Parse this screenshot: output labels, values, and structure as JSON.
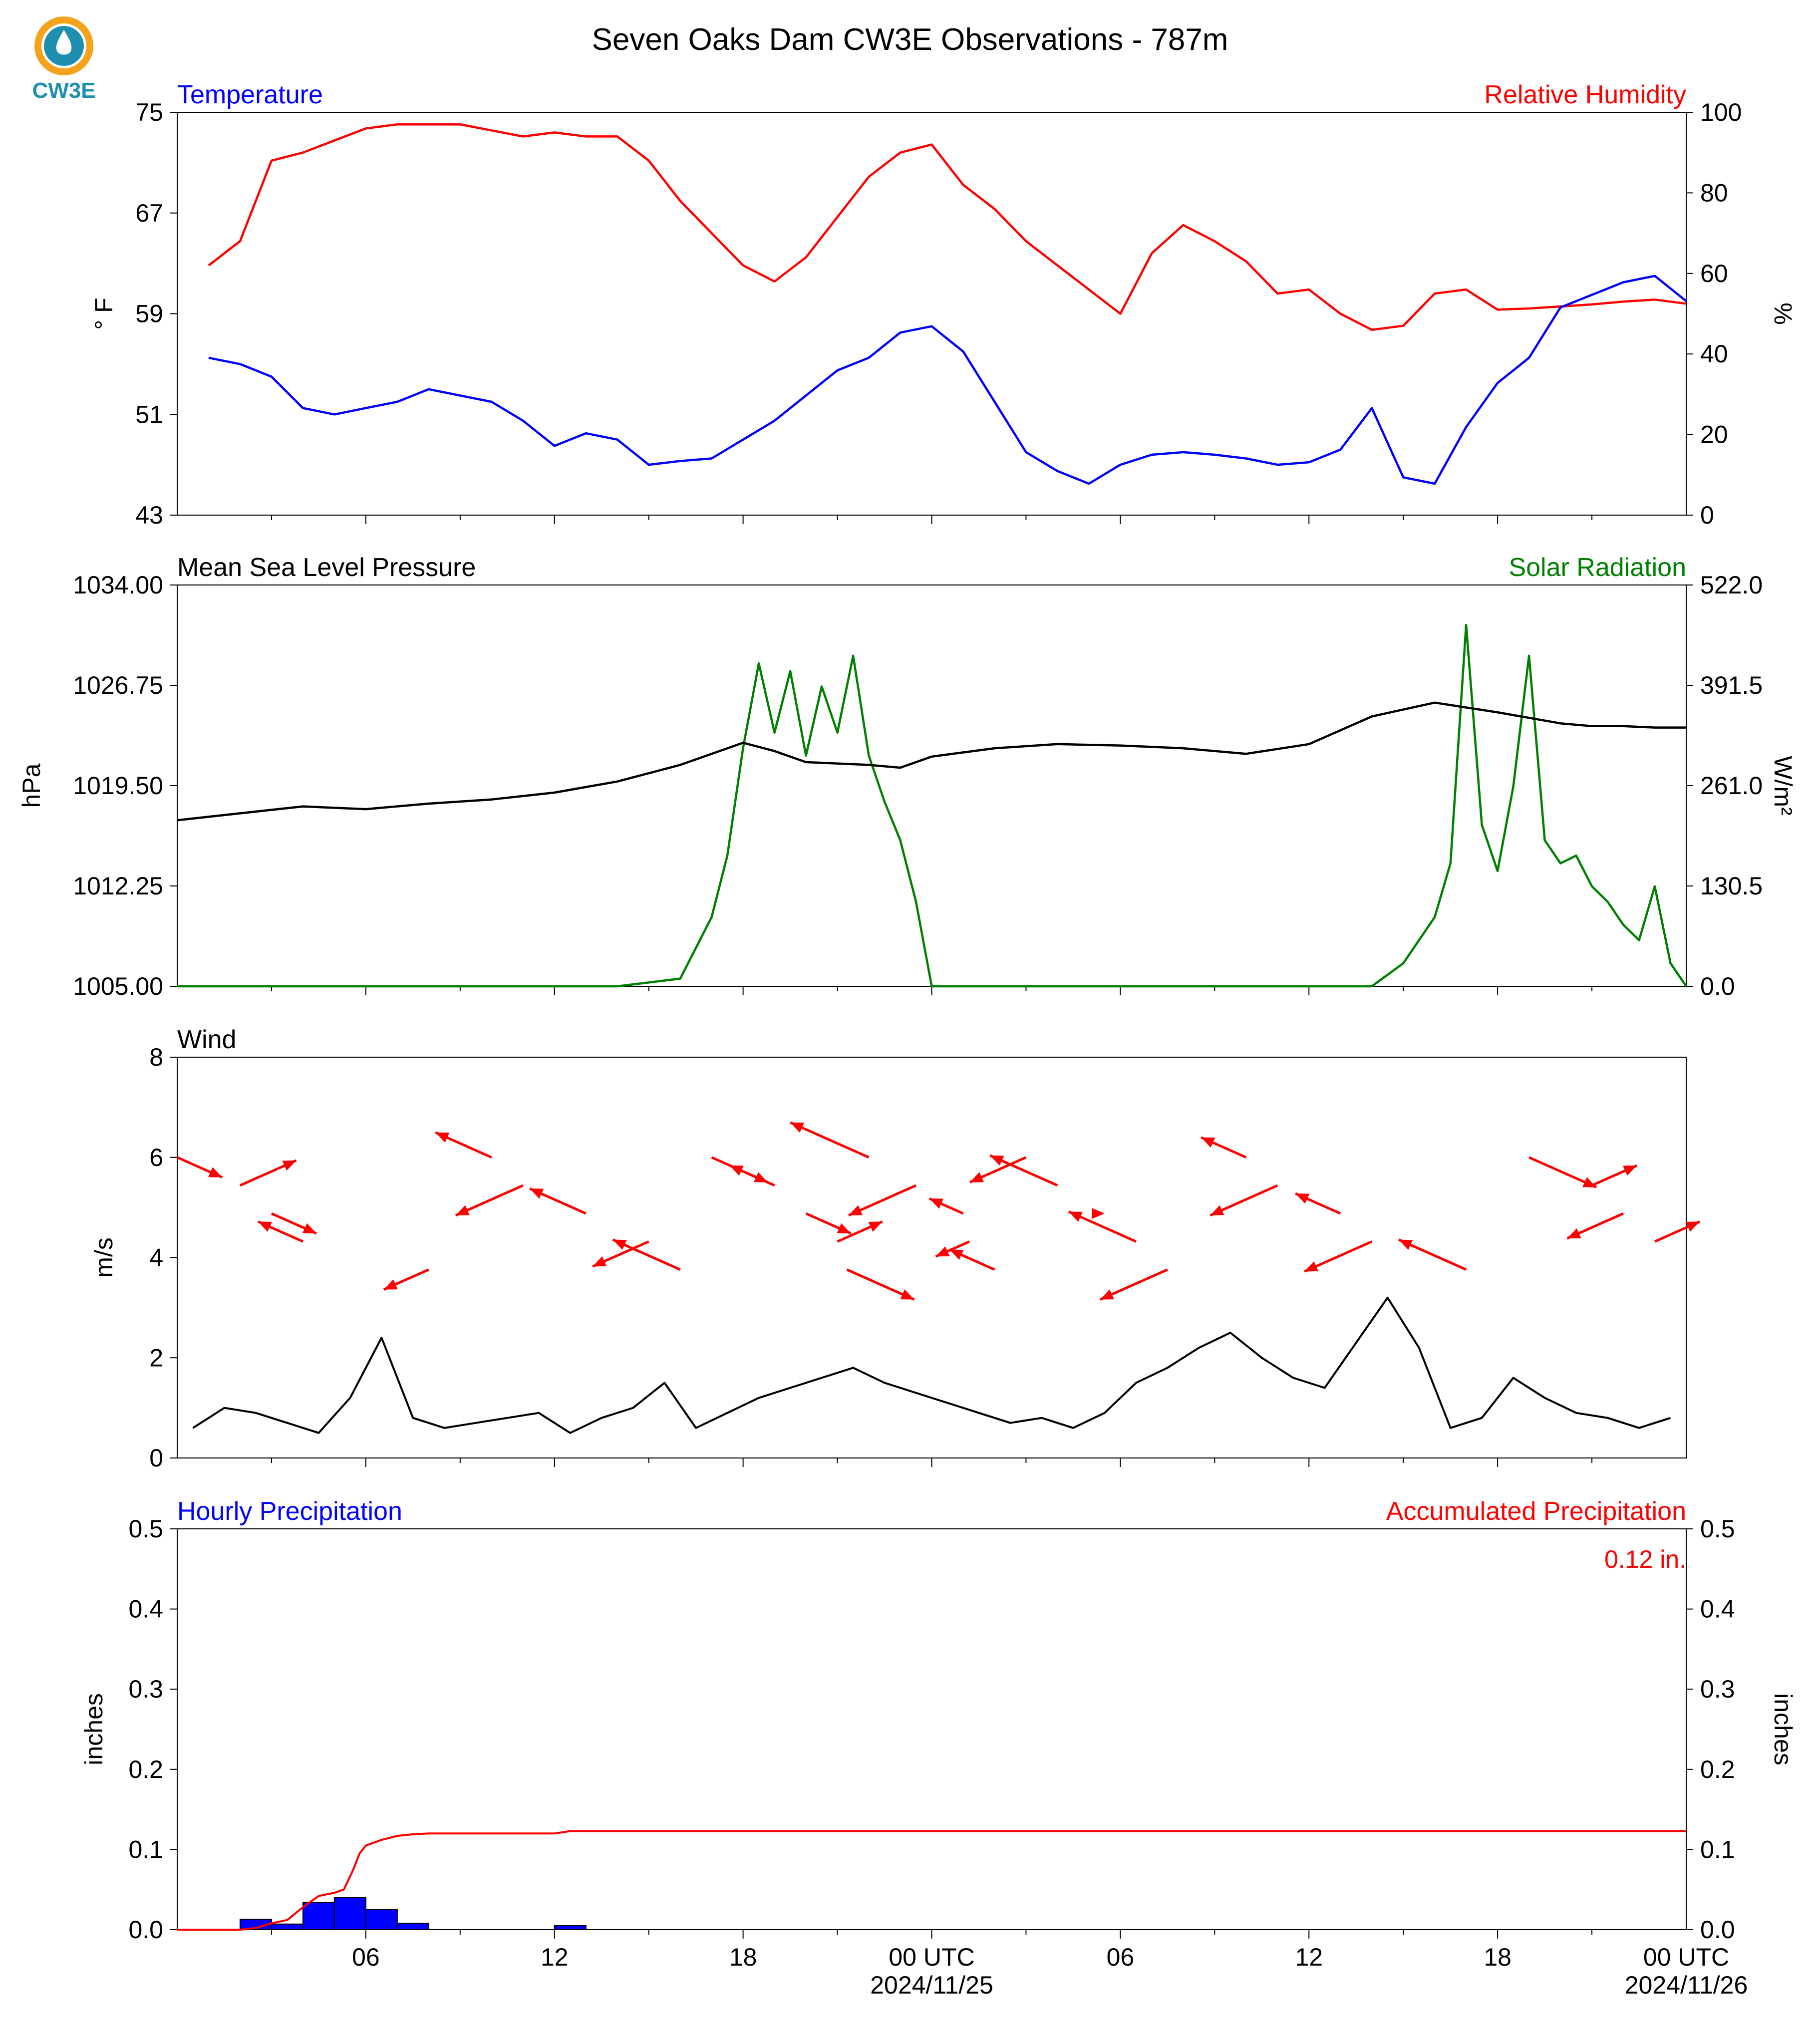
{
  "figure": {
    "title": "Seven Oaks Dam CW3E Observations - 787m",
    "logo_text": "CW3E",
    "time_ticks": [
      "06",
      "12",
      "18",
      "00 UTC",
      "06",
      "12",
      "18",
      "00 UTC"
    ],
    "date_labels": [
      "2024/11/25",
      "2024/11/26"
    ]
  },
  "colors": {
    "blue": "#0000ff",
    "red": "#ff0000",
    "green": "#008000",
    "black": "#000000",
    "logo_orange": "#f5a31a",
    "logo_teal": "#1f8fb0"
  },
  "chart_data": [
    {
      "type": "line",
      "panel": "temperature-humidity",
      "left_title": "Temperature",
      "right_title": "Relative Humidity",
      "ylabel": "° F",
      "ylabel2": "%",
      "ylim": [
        43,
        75
      ],
      "ylim2": [
        0,
        100
      ],
      "yticks": [
        "75",
        "67",
        "59",
        "51",
        "43"
      ],
      "yticks2": [
        "100",
        "80",
        "60",
        "40",
        "20",
        "0"
      ],
      "x_hours": [
        1,
        2,
        3,
        4,
        5,
        6,
        7,
        8,
        9,
        10,
        11,
        12,
        13,
        14,
        15,
        16,
        17,
        18,
        19,
        20,
        21,
        22,
        23,
        24,
        25,
        26,
        27,
        28,
        29,
        30,
        31,
        32,
        33,
        34,
        35,
        36,
        37,
        38,
        39,
        40,
        41,
        42,
        43,
        44,
        45,
        46,
        47,
        48
      ],
      "series": [
        {
          "name": "Temperature",
          "axis": "left",
          "color": "blue",
          "values": [
            55.5,
            55,
            54,
            51.5,
            51,
            51.5,
            52,
            53,
            52.5,
            52,
            50.5,
            48.5,
            49.5,
            49,
            47,
            47.3,
            47.5,
            49,
            50.5,
            52.5,
            54.5,
            55.5,
            57.5,
            58,
            56,
            52,
            48,
            46.5,
            45.5,
            47,
            47.8,
            48,
            47.8,
            47.5,
            47,
            47.2,
            48.2,
            51.5,
            46,
            45.5,
            50,
            53.5,
            55.5,
            59.5,
            60.5,
            61.5,
            62,
            60
          ]
        },
        {
          "name": "Relative Humidity",
          "axis": "right",
          "color": "red",
          "values": [
            62,
            68,
            88,
            90,
            93,
            96,
            97,
            97,
            97,
            95.5,
            94,
            95,
            94,
            94,
            88,
            78,
            70,
            62,
            58,
            64,
            74,
            84,
            90,
            92,
            82,
            76,
            68,
            62,
            56,
            50,
            65,
            72,
            68,
            63,
            55,
            56,
            50,
            46,
            47,
            55,
            56,
            51,
            51.3,
            51.8,
            52.3,
            53,
            53.5,
            52.5
          ]
        }
      ]
    },
    {
      "type": "line",
      "panel": "pressure-solar",
      "left_title": "Mean Sea Level Pressure",
      "right_title": "Solar Radiation",
      "ylabel": "hPa",
      "ylabel2": "W/m²",
      "ylim": [
        1005,
        1034
      ],
      "ylim2": [
        0,
        522
      ],
      "yticks": [
        "1034.00",
        "1026.75",
        "1019.50",
        "1012.25",
        "1005.00"
      ],
      "yticks2": [
        "522.0",
        "391.5",
        "261.0",
        "130.5",
        "0.0"
      ],
      "series": [
        {
          "name": "Mean Sea Level Pressure",
          "axis": "left",
          "color": "black",
          "x": [
            0,
            2,
            4,
            6,
            8,
            10,
            12,
            14,
            16,
            18,
            19,
            20,
            22,
            23,
            24,
            26,
            28,
            30,
            32,
            34,
            36,
            38,
            40,
            42,
            44,
            45,
            46,
            47,
            48
          ],
          "values": [
            1017,
            1017.5,
            1018,
            1017.8,
            1018.2,
            1018.5,
            1019,
            1019.8,
            1021,
            1022.6,
            1022,
            1021.2,
            1021,
            1020.8,
            1021.6,
            1022.2,
            1022.5,
            1022.4,
            1022.2,
            1021.8,
            1022.5,
            1024.5,
            1025.5,
            1024.8,
            1024,
            1023.8,
            1023.8,
            1023.7,
            1023.7
          ]
        },
        {
          "name": "Solar Radiation",
          "axis": "right",
          "color": "green",
          "x": [
            0,
            14,
            16,
            16.5,
            17,
            17.5,
            18,
            18.5,
            19,
            19.5,
            20,
            20.5,
            21,
            21.5,
            22,
            22.5,
            23,
            23.5,
            24,
            38,
            39,
            40,
            40.5,
            41,
            41.5,
            42,
            42.5,
            43,
            43.5,
            44,
            44.5,
            45,
            45.5,
            46,
            46.5,
            47,
            47.5,
            48
          ],
          "values": [
            0,
            0,
            10,
            50,
            90,
            170,
            310,
            420,
            330,
            410,
            300,
            390,
            330,
            430,
            300,
            240,
            190,
            110,
            0,
            0,
            30,
            90,
            160,
            470,
            210,
            150,
            260,
            430,
            190,
            160,
            170,
            130,
            110,
            80,
            60,
            130,
            30,
            0
          ]
        }
      ]
    },
    {
      "type": "line",
      "panel": "wind",
      "left_title": "Wind",
      "ylabel": "m/s",
      "ylim": [
        0,
        8
      ],
      "yticks": [
        "8",
        "6",
        "4",
        "2",
        "0"
      ],
      "series": [
        {
          "name": "Wind speed",
          "axis": "left",
          "color": "black",
          "values": [
            0.6,
            1.0,
            0.9,
            0.7,
            0.5,
            1.2,
            2.4,
            0.8,
            0.6,
            0.7,
            0.8,
            0.9,
            0.5,
            0.8,
            1.0,
            1.5,
            0.6,
            0.9,
            1.2,
            1.4,
            1.6,
            1.8,
            1.5,
            1.3,
            1.1,
            0.9,
            0.7,
            0.8,
            0.6,
            0.9,
            1.5,
            1.8,
            2.2,
            2.5,
            2.0,
            1.6,
            1.4,
            2.3,
            3.2,
            2.2,
            0.6,
            0.8,
            1.6,
            1.2,
            0.9,
            0.8,
            0.6,
            0.8
          ]
        },
        {
          "name": "Wind barbs",
          "type": "vector",
          "color": "red",
          "x_hours": [
            0,
            2,
            3,
            4,
            8,
            10,
            11,
            13,
            15,
            16,
            17,
            19,
            20,
            21,
            21.3,
            22,
            23.5,
            25,
            25.2,
            26,
            27,
            28,
            29.5,
            30.5,
            31.5,
            34,
            35,
            37,
            38,
            41,
            43,
            45,
            46,
            47
          ],
          "u": [
            2,
            2.5,
            2,
            -2,
            -2,
            -2.5,
            -3,
            -2.5,
            -2.5,
            -3,
            2.5,
            -2,
            2,
            2,
            3,
            -3.5,
            -3,
            -1.5,
            -1.5,
            -2,
            -2.5,
            -3,
            0,
            -3,
            -3,
            -2,
            -3,
            -2,
            -3,
            -3,
            3,
            2,
            -2.5,
            2
          ]
        }
      ]
    },
    {
      "type": "bar",
      "panel": "precipitation",
      "left_title": "Hourly Precipitation",
      "right_title": "Accumulated Precipitation",
      "annotation": "0.12 in.",
      "ylabel": "inches",
      "ylabel2": "inches",
      "ylim": [
        0,
        0.5
      ],
      "ylim2": [
        0,
        0.5
      ],
      "yticks": [
        "0.5",
        "0.4",
        "0.3",
        "0.2",
        "0.1",
        "0.0"
      ],
      "yticks2": [
        "0.5",
        "0.4",
        "0.3",
        "0.2",
        "0.1",
        "0.0"
      ],
      "series": [
        {
          "name": "Hourly Precipitation",
          "axis": "left",
          "color": "blue",
          "bar_start_hours": [
            2,
            3,
            4,
            5,
            6,
            7,
            12
          ],
          "values": [
            0.013,
            0.007,
            0.034,
            0.04,
            0.025,
            0.008,
            0.005
          ]
        },
        {
          "name": "Accumulated Precipitation",
          "axis": "right",
          "color": "red",
          "x": [
            0,
            2,
            2.5,
            3,
            3.5,
            4,
            4.5,
            5,
            5.3,
            5.6,
            5.8,
            6,
            6.5,
            7,
            7.5,
            8,
            12,
            12.5,
            48
          ],
          "values": [
            0,
            0,
            0.002,
            0.008,
            0.012,
            0.028,
            0.042,
            0.046,
            0.05,
            0.075,
            0.095,
            0.105,
            0.112,
            0.117,
            0.119,
            0.12,
            0.12,
            0.123,
            0.123
          ]
        }
      ]
    }
  ]
}
